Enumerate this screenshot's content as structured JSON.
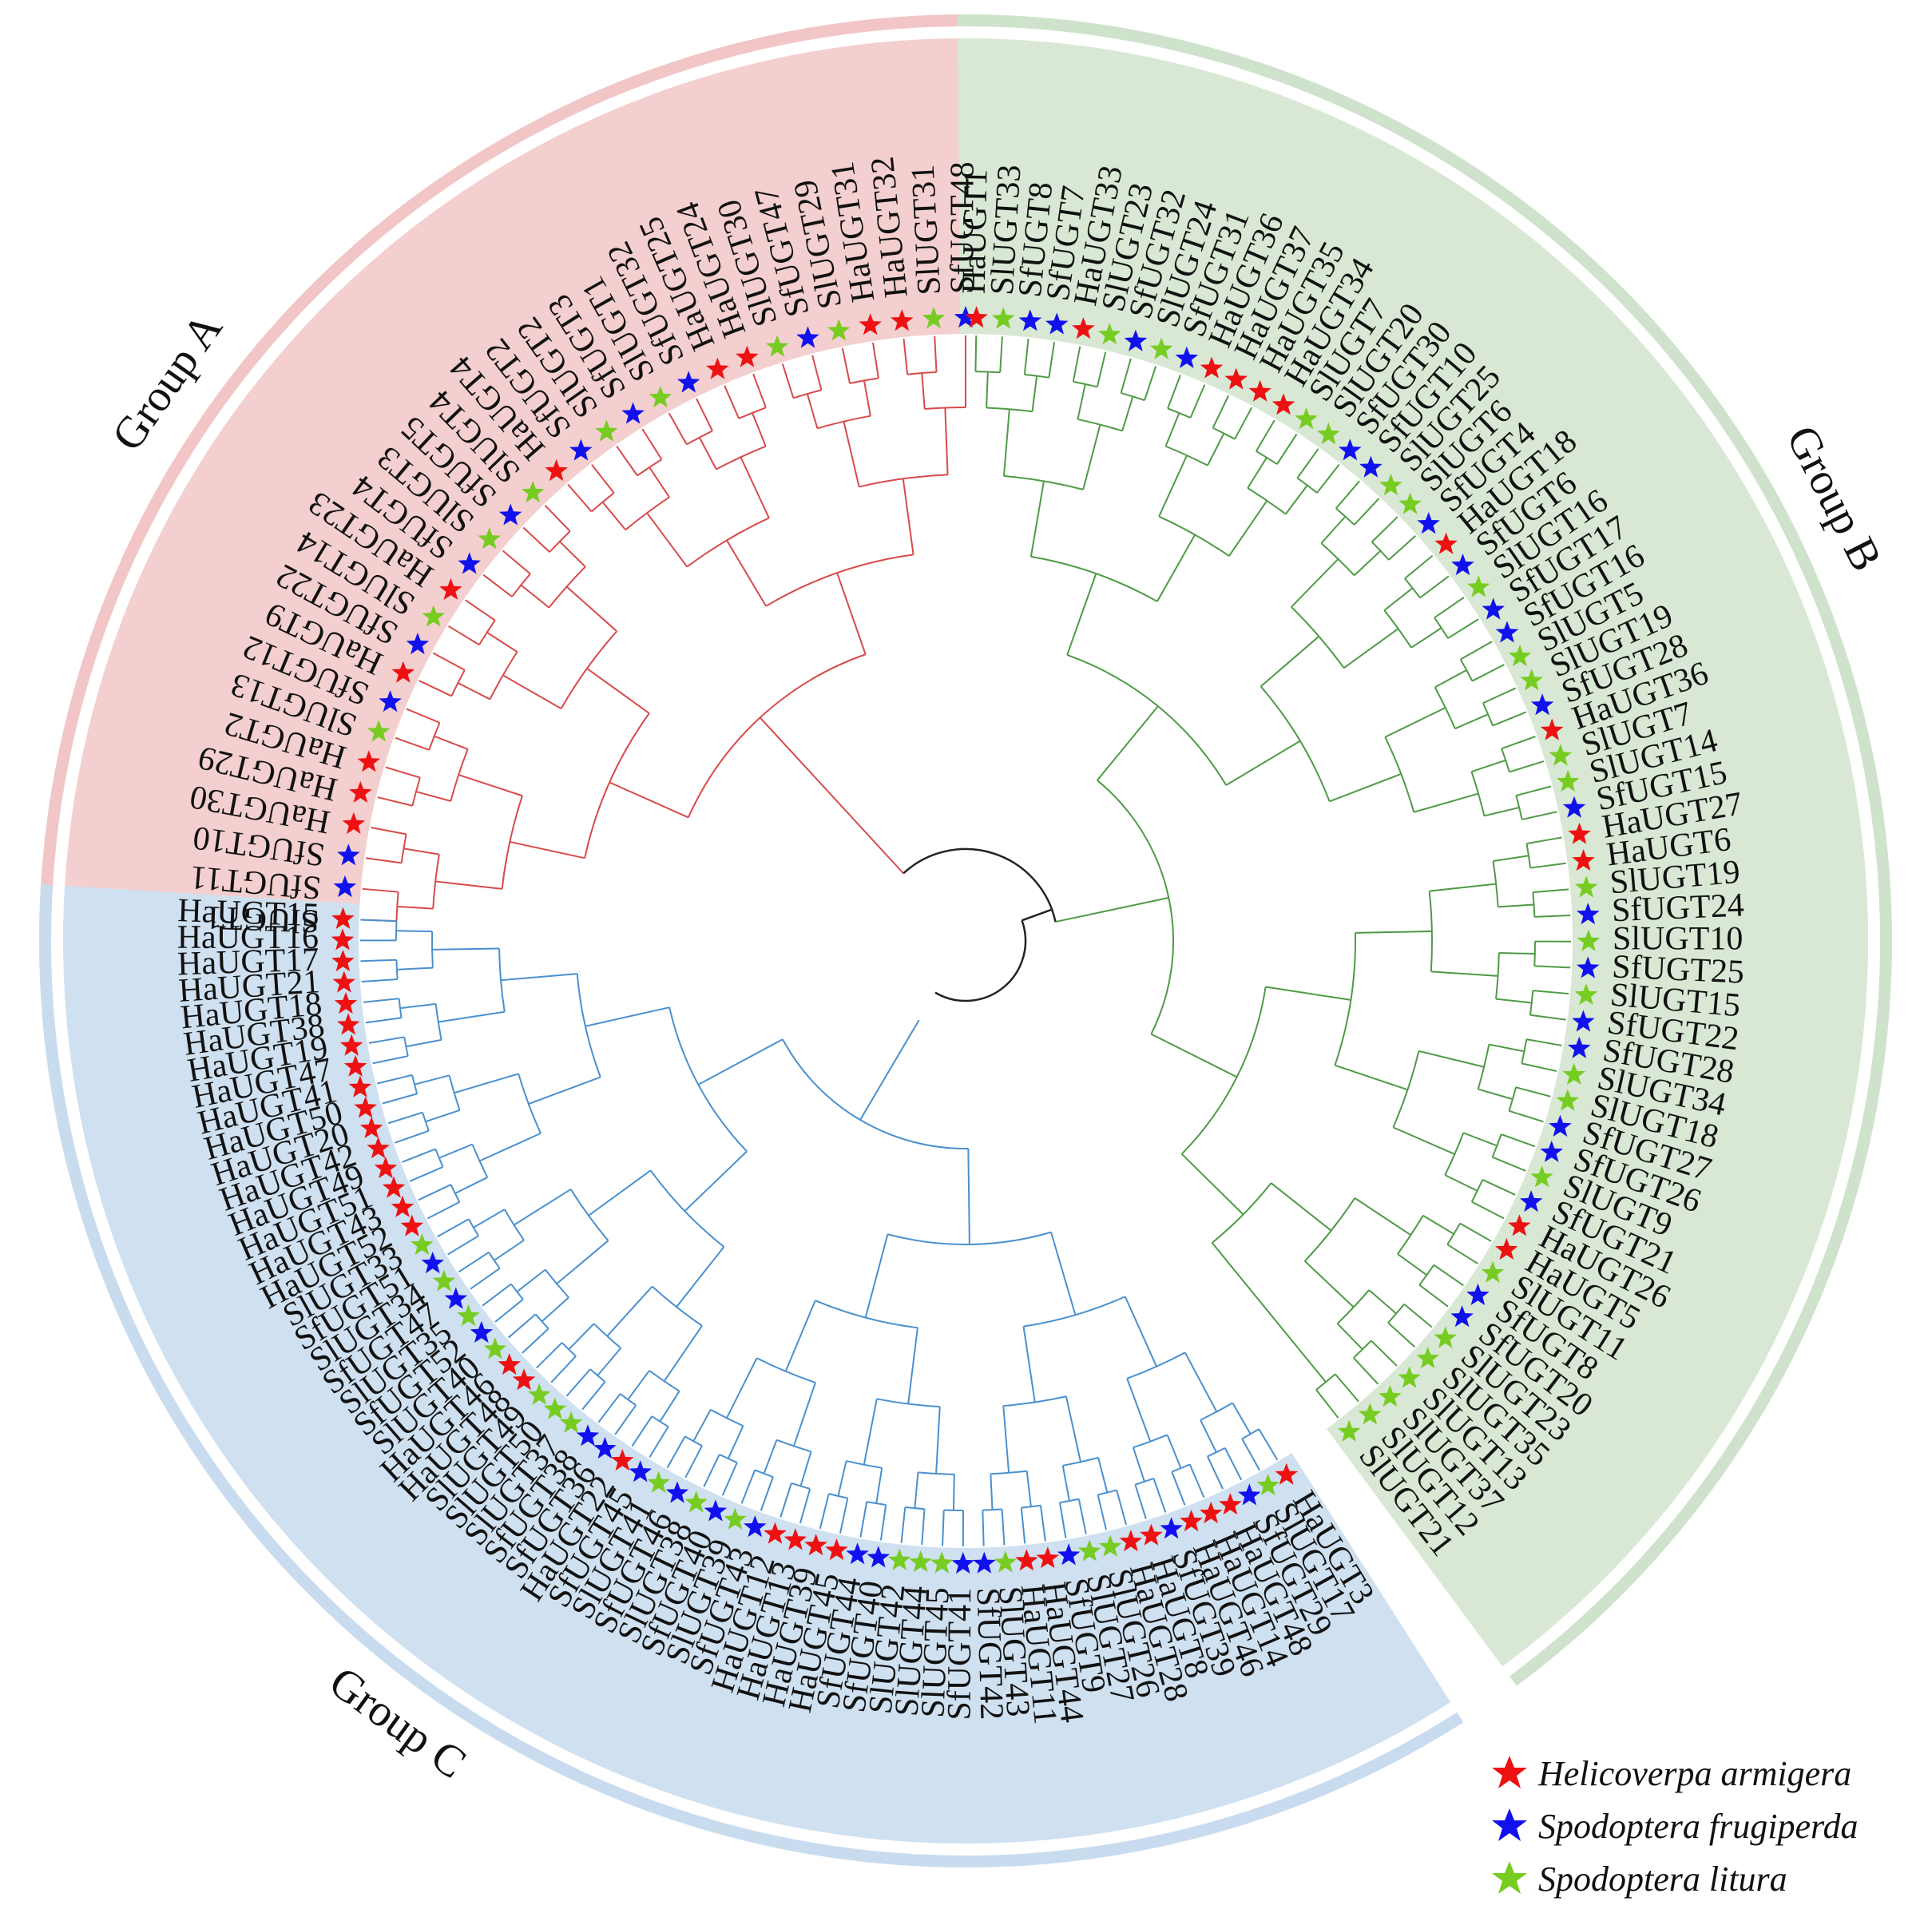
{
  "species": [
    {
      "key": "Ha",
      "name": "Helicoverpa armigera",
      "color": "#ee1111"
    },
    {
      "key": "Sf",
      "name": "Spodoptera frugiperda",
      "color": "#1111ee"
    },
    {
      "key": "Sl",
      "name": "Spodoptera litura",
      "color": "#77cc22"
    }
  ],
  "groups": [
    {
      "id": "A",
      "label": "Group A",
      "color": "#f2c6c6",
      "band": "#f4cfcf",
      "branch": "#d84a4a",
      "leaves": [
        "SlUGT1",
        "SfUGT11",
        "SfUGT10",
        "HaUGT30",
        "HaUGT29",
        "HaUGT2",
        "SlUGT13",
        "SfUGT12",
        "HaUGT9",
        "SfUGT22",
        "SlUGT14",
        "HaUGT23",
        "SfUGT4",
        "SlUGT3",
        "SfUGT5",
        "SlUGT4",
        "HaUGT4",
        "SfUGT2",
        "SlUGT2",
        "SfUGT3",
        "SlUGT1",
        "SfUGT32",
        "HaUGT25",
        "HaUGT24",
        "SlUGT30",
        "SfUGT47",
        "SlUGT29",
        "HaUGT31",
        "HaUGT32",
        "SlUGT31",
        "SfUGT48"
      ]
    },
    {
      "id": "B",
      "label": "Group B",
      "color": "#cfe3cc",
      "band": "#d8e8d4",
      "branch": "#4f9a46",
      "leaves": [
        "HaUGT1",
        "SlUGT33",
        "SfUGT8",
        "SfUGT7",
        "HaUGT33",
        "SlUGT23",
        "SfUGT32",
        "SlUGT24",
        "SfUGT31",
        "HaUGT36",
        "HaUGT37",
        "HaUGT35",
        "HaUGT34",
        "SlUGT7",
        "SlUGT20",
        "SfUGT30",
        "SfUGT10",
        "SlUGT25",
        "SlUGT6",
        "SfUGT4",
        "HaUGT18",
        "SfUGT6",
        "SlUGT16",
        "SfUGT17",
        "SfUGT16",
        "SlUGT5",
        "SlUGT19",
        "SfUGT28",
        "HaUGT36",
        "SlUGT7",
        "SlUGT14",
        "SfUGT15",
        "HaUGT27",
        "HaUGT6",
        "SlUGT19",
        "SfUGT24",
        "SlUGT10",
        "SfUGT25",
        "SlUGT15",
        "SfUGT22",
        "SfUGT28",
        "SlUGT34",
        "SlUGT18",
        "SfUGT27",
        "SfUGT26",
        "SlUGT9",
        "SfUGT21",
        "HaUGT26",
        "HaUGT5",
        "SlUGT11",
        "SfUGT8",
        "SfUGT20",
        "SlUGT23",
        "SlUGT35",
        "SlUGT13",
        "SlUGT37",
        "SlUGT12",
        "SlUGT21"
      ]
    },
    {
      "id": "C",
      "label": "Group C",
      "color": "#c9dcef",
      "band": "#cfe0f0",
      "branch": "#4a90cf",
      "leaves": [
        "HaUGT3",
        "SlUGT17",
        "SfUGT29",
        "HaUGT48",
        "HaUGT14",
        "HaUGT46",
        "SfUGT39",
        "HaUGT8",
        "HaUGT28",
        "SlUGT26",
        "SlUGT27",
        "SfUGT9",
        "HaUGT44",
        "HaUGT11",
        "SlUGT43",
        "SfUGT42",
        "SfUGT41",
        "SlUGT45",
        "SlUGT44",
        "SlUGT42",
        "SfUGT40",
        "SfUGT44",
        "HaUGT45",
        "HaUGT39",
        "HaUGT13",
        "HaUGT12",
        "SfUGT43",
        "SlUGT39",
        "SfUGT40",
        "SlUGT38",
        "SfUGT46",
        "SlUGT41",
        "SfUGT45",
        "HaUGT22",
        "SfUGT36",
        "SfUGT38",
        "SlUGT37",
        "SlUGT50",
        "SlUGT49",
        "HaUGT48",
        "HaUGT46",
        "SlUGT40",
        "SfUGT52",
        "SlUGT35",
        "SfUGT47",
        "SlUGT34",
        "SfUGT51",
        "SlUGT33",
        "HaUGT52",
        "HaUGT43",
        "HaUGT51",
        "HaUGT49",
        "HaUGT42",
        "HaUGT20",
        "HaUGT50",
        "HaUGT41",
        "HaUGT47",
        "HaUGT19",
        "HaUGT38",
        "HaUGT18",
        "HaUGT21",
        "HaUGT17",
        "HaUGT16",
        "HaUGT15"
      ]
    }
  ]
}
